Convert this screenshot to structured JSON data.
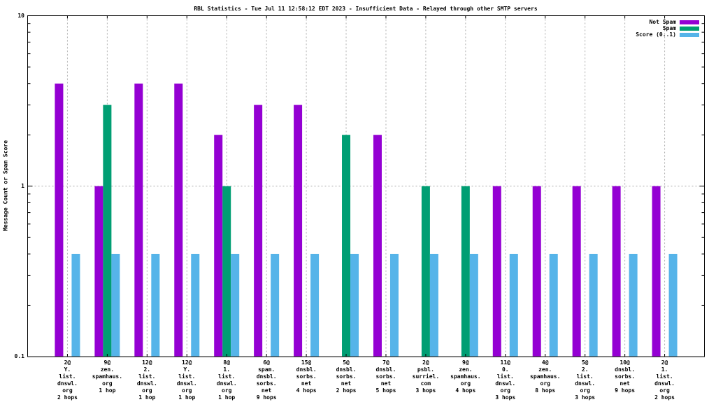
{
  "chart_data": {
    "type": "bar",
    "title": "RBL Statistics - Tue Jul 11 12:58:12 EDT 2023 - Insufficient Data - Relayed through other SMTP servers",
    "ylabel": "Message Count or Spam Score",
    "y_scale": "log",
    "ylim": [
      0.1,
      10
    ],
    "y_major_ticks": [
      0.1,
      1,
      10
    ],
    "y_tick_labels": [
      "0.1",
      "1",
      "10"
    ],
    "grid": true,
    "legend_position": "top-right-inside",
    "background_color": "#ffffff",
    "categories": [
      [
        "2@",
        "Y.",
        "list.",
        "dnswl.",
        "org",
        "2 hops"
      ],
      [
        "9@",
        "zen.",
        "spamhaus.",
        "org",
        "1 hop"
      ],
      [
        "12@",
        "2.",
        "list.",
        "dnswl.",
        "org",
        "1 hop"
      ],
      [
        "12@",
        "Y.",
        "list.",
        "dnswl.",
        "org",
        "1 hop"
      ],
      [
        "8@",
        "1.",
        "list.",
        "dnswl.",
        "org",
        "1 hop"
      ],
      [
        "6@",
        "spam.",
        "dnsbl.",
        "sorbs.",
        "net",
        "9 hops"
      ],
      [
        "15@",
        "dnsbl.",
        "sorbs.",
        "net",
        "4 hops"
      ],
      [
        "5@",
        "dnsbl.",
        "sorbs.",
        "net",
        "2 hops"
      ],
      [
        "7@",
        "dnsbl.",
        "sorbs.",
        "net",
        "5 hops"
      ],
      [
        "2@",
        "psbl.",
        "surriel.",
        "com",
        "3 hops"
      ],
      [
        "9@",
        "zen.",
        "spamhaus.",
        "org",
        "4 hops"
      ],
      [
        "11@",
        "0.",
        "list.",
        "dnswl.",
        "org",
        "3 hops"
      ],
      [
        "4@",
        "zen.",
        "spamhaus.",
        "org",
        "8 hops"
      ],
      [
        "5@",
        "2.",
        "list.",
        "dnswl.",
        "org",
        "3 hops"
      ],
      [
        "10@",
        "dnsbl.",
        "sorbs.",
        "net",
        "9 hops"
      ],
      [
        "2@",
        "1.",
        "list.",
        "dnswl.",
        "org",
        "2 hops"
      ]
    ],
    "series": [
      {
        "name": "Not Spam",
        "color": "#9400d3",
        "values": [
          4,
          1,
          4,
          4,
          2,
          3,
          3,
          0,
          2,
          0,
          0,
          1,
          1,
          1,
          1,
          1
        ]
      },
      {
        "name": "Spam",
        "color": "#009e73",
        "values": [
          0,
          3,
          0,
          0,
          1,
          0,
          0,
          2,
          0,
          1,
          1,
          0,
          0,
          0,
          0,
          0
        ]
      },
      {
        "name": "Score (0..1)",
        "color": "#56b4e9",
        "values": [
          0.4,
          0.4,
          0.4,
          0.4,
          0.4,
          0.4,
          0.4,
          0.4,
          0.4,
          0.4,
          0.4,
          0.4,
          0.4,
          0.4,
          0.4,
          0.4
        ]
      }
    ]
  }
}
